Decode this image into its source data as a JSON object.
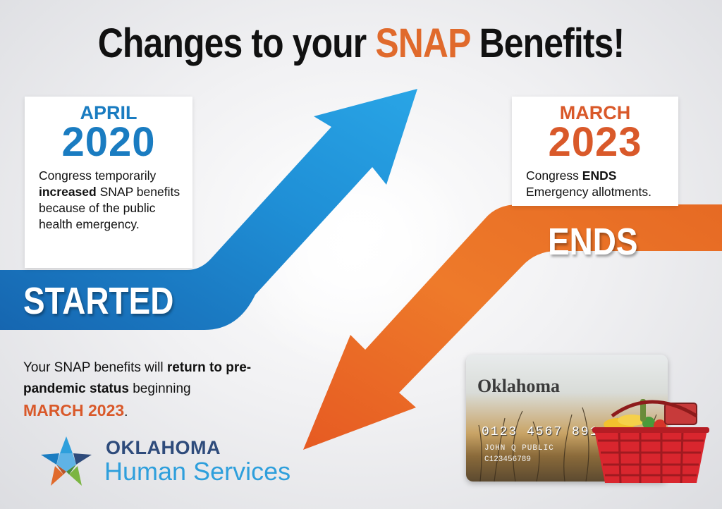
{
  "title": {
    "part1": "Changes to your ",
    "accent": "SNAP",
    "part2": " Benefits!"
  },
  "left_card": {
    "month": "APRIL",
    "year": "2020",
    "desc_pre": "Congress temporarily ",
    "desc_bold": "increased",
    "desc_post": " SNAP benefits because of the public health emergency."
  },
  "right_card": {
    "month": "MARCH",
    "year": "2023",
    "desc_pre": "Congress ",
    "desc_bold": "ENDS",
    "desc_post": " Emergency allotments."
  },
  "arrow_labels": {
    "up": "STARTED",
    "down": "ENDS"
  },
  "bottom": {
    "pre": "Your SNAP benefits will ",
    "bold": "return to pre-pandemic status",
    "post": " beginning",
    "highlight": "MARCH 2023",
    "end": "."
  },
  "logo": {
    "line1": "OKLAHOMA",
    "line2": "Human Services"
  },
  "card": {
    "state": "Oklahoma",
    "number": "0123 4567 891",
    "holder": "JOHN Q PUBLIC",
    "account": "C123456789"
  },
  "colors": {
    "blue": "#1a7cc1",
    "orange": "#e06a2c",
    "navy": "#2e4b7b",
    "light_blue": "#2e9fdc"
  }
}
